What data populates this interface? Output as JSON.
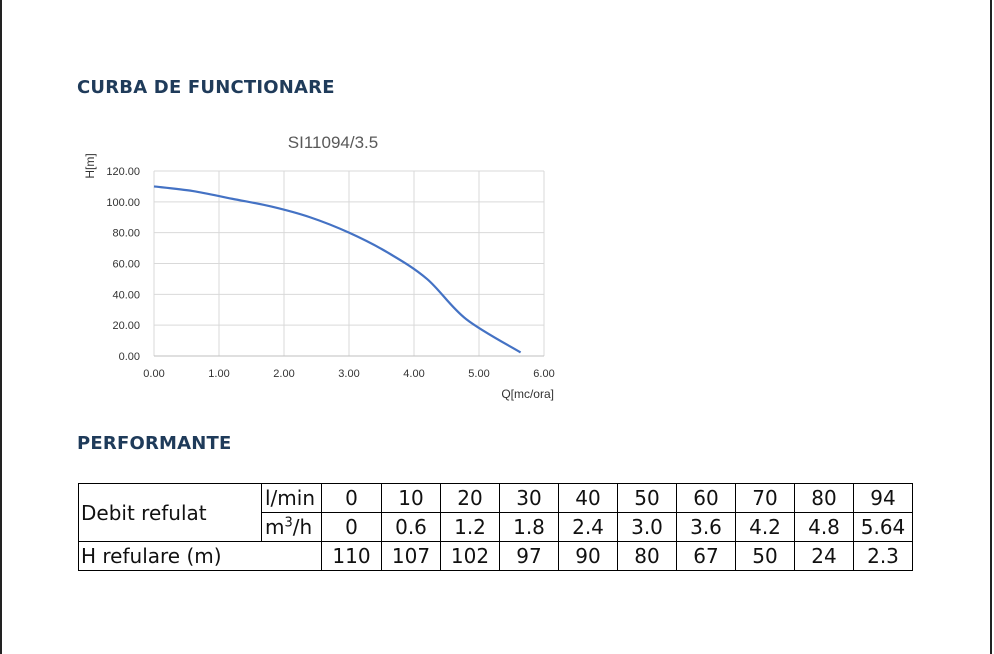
{
  "sections": {
    "curve_title": "CURBA DE FUNCTIONARE",
    "performance_title": "PERFORMANTE"
  },
  "chart_data": {
    "type": "line",
    "title": "SI11094/3.5",
    "xlabel": "Q[mc/ora]",
    "ylabel": "H[m]",
    "xlim": [
      0,
      6
    ],
    "ylim": [
      0,
      120
    ],
    "x_ticks": [
      "0.00",
      "1.00",
      "2.00",
      "3.00",
      "4.00",
      "5.00",
      "6.00"
    ],
    "y_ticks": [
      "0.00",
      "20.00",
      "40.00",
      "60.00",
      "80.00",
      "100.00",
      "120.00"
    ],
    "grid": true,
    "series": [
      {
        "x": [
          0,
          0.6,
          1.2,
          1.8,
          2.4,
          3.0,
          3.6,
          4.2,
          4.8,
          5.64
        ],
        "y": [
          110,
          107,
          102,
          97,
          90,
          80,
          67,
          50,
          24,
          2.3
        ]
      }
    ],
    "color": "#4472c4"
  },
  "table": {
    "row_flow_label": "Debit refulat",
    "unit_lmin": "l/min",
    "unit_m3h_base": "m",
    "unit_m3h_exp": "3",
    "unit_m3h_tail": "/h",
    "lmin_values": [
      "0",
      "10",
      "20",
      "30",
      "40",
      "50",
      "60",
      "70",
      "80",
      "94"
    ],
    "m3h_values": [
      "0",
      "0.6",
      "1.2",
      "1.8",
      "2.4",
      "3.0",
      "3.6",
      "4.2",
      "4.8",
      "5.64"
    ],
    "row_head_label": "H refulare (m)",
    "head_values": [
      "110",
      "107",
      "102",
      "97",
      "90",
      "80",
      "67",
      "50",
      "24",
      "2.3"
    ]
  }
}
